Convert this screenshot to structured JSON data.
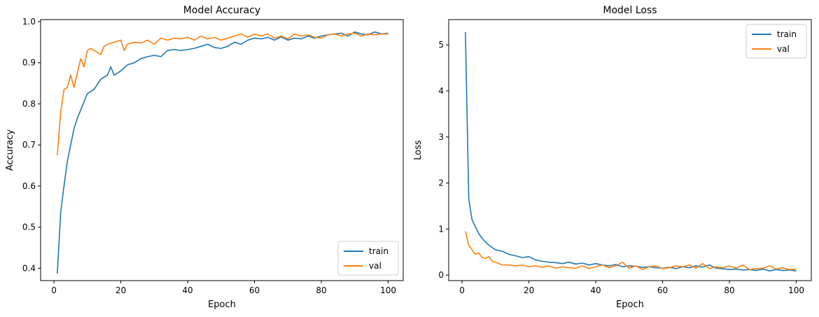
{
  "chart_data": [
    {
      "type": "line",
      "title": "Model Accuracy",
      "xlabel": "Epoch",
      "ylabel": "Accuracy",
      "xlim": [
        -4.0,
        104.5
      ],
      "ylim": [
        0.37,
        1.005
      ],
      "xticks": [
        0,
        20,
        40,
        60,
        80,
        100
      ],
      "yticks": [
        0.4,
        0.5,
        0.6,
        0.7,
        0.8,
        0.9,
        1.0
      ],
      "ytick_labels": [
        "0.4",
        "0.5",
        "0.6",
        "0.7",
        "0.8",
        "0.9",
        "1.0"
      ],
      "grid": false,
      "legend_position": "lower-right",
      "series": [
        {
          "name": "train",
          "color": "#1f77b4",
          "x": [
            1,
            2,
            3,
            4,
            5,
            6,
            7,
            8,
            9,
            10,
            12,
            14,
            16,
            17,
            18,
            20,
            22,
            24,
            26,
            28,
            30,
            32,
            34,
            36,
            38,
            40,
            42,
            44,
            46,
            48,
            50,
            52,
            54,
            56,
            58,
            60,
            62,
            64,
            66,
            68,
            70,
            72,
            74,
            76,
            78,
            80,
            82,
            84,
            86,
            88,
            90,
            92,
            94,
            96,
            98,
            100
          ],
          "y": [
            0.387,
            0.535,
            0.6,
            0.66,
            0.7,
            0.74,
            0.765,
            0.785,
            0.805,
            0.825,
            0.835,
            0.86,
            0.87,
            0.89,
            0.87,
            0.88,
            0.895,
            0.9,
            0.91,
            0.915,
            0.918,
            0.915,
            0.93,
            0.932,
            0.93,
            0.932,
            0.935,
            0.94,
            0.945,
            0.937,
            0.935,
            0.94,
            0.95,
            0.945,
            0.955,
            0.96,
            0.958,
            0.962,
            0.955,
            0.963,
            0.955,
            0.96,
            0.958,
            0.965,
            0.96,
            0.965,
            0.968,
            0.97,
            0.972,
            0.965,
            0.975,
            0.97,
            0.968,
            0.975,
            0.97,
            0.972
          ]
        },
        {
          "name": "val",
          "color": "#ff7f0e",
          "x": [
            1,
            2,
            3,
            4,
            5,
            6,
            7,
            8,
            9,
            10,
            11,
            12,
            14,
            15,
            16,
            18,
            20,
            21,
            22,
            24,
            26,
            28,
            30,
            32,
            34,
            36,
            38,
            40,
            42,
            44,
            46,
            48,
            50,
            52,
            54,
            56,
            58,
            60,
            62,
            64,
            66,
            68,
            70,
            72,
            74,
            76,
            78,
            80,
            82,
            84,
            86,
            88,
            90,
            92,
            94,
            96,
            98,
            100
          ],
          "y": [
            0.675,
            0.78,
            0.835,
            0.84,
            0.87,
            0.84,
            0.875,
            0.91,
            0.89,
            0.93,
            0.935,
            0.93,
            0.92,
            0.94,
            0.945,
            0.95,
            0.955,
            0.93,
            0.945,
            0.95,
            0.948,
            0.955,
            0.945,
            0.96,
            0.955,
            0.96,
            0.958,
            0.962,
            0.955,
            0.965,
            0.958,
            0.962,
            0.955,
            0.96,
            0.965,
            0.97,
            0.962,
            0.97,
            0.965,
            0.97,
            0.96,
            0.965,
            0.958,
            0.97,
            0.965,
            0.968,
            0.962,
            0.96,
            0.968,
            0.97,
            0.965,
            0.97,
            0.972,
            0.965,
            0.97,
            0.968,
            0.97,
            0.97
          ]
        }
      ]
    },
    {
      "type": "line",
      "title": "Model Loss",
      "xlabel": "Epoch",
      "ylabel": "Loss",
      "xlim": [
        -4.0,
        104.5
      ],
      "ylim": [
        -0.12,
        5.55
      ],
      "xticks": [
        0,
        20,
        40,
        60,
        80,
        100
      ],
      "yticks": [
        0,
        1,
        2,
        3,
        4,
        5
      ],
      "ytick_labels": [
        "0",
        "1",
        "2",
        "3",
        "4",
        "5"
      ],
      "grid": false,
      "legend_position": "upper-right",
      "series": [
        {
          "name": "train",
          "color": "#1f77b4",
          "x": [
            1,
            2,
            3,
            4,
            5,
            6,
            7,
            8,
            9,
            10,
            12,
            14,
            16,
            18,
            20,
            22,
            24,
            26,
            28,
            30,
            32,
            34,
            36,
            38,
            40,
            42,
            44,
            46,
            48,
            50,
            52,
            54,
            56,
            58,
            60,
            62,
            64,
            66,
            68,
            70,
            72,
            74,
            76,
            78,
            80,
            82,
            84,
            86,
            88,
            90,
            92,
            94,
            96,
            98,
            100
          ],
          "y": [
            5.28,
            1.65,
            1.2,
            1.05,
            0.9,
            0.8,
            0.72,
            0.65,
            0.6,
            0.55,
            0.52,
            0.45,
            0.42,
            0.38,
            0.4,
            0.33,
            0.3,
            0.28,
            0.27,
            0.25,
            0.28,
            0.24,
            0.26,
            0.22,
            0.25,
            0.22,
            0.2,
            0.23,
            0.18,
            0.2,
            0.19,
            0.17,
            0.18,
            0.16,
            0.15,
            0.17,
            0.14,
            0.18,
            0.16,
            0.2,
            0.17,
            0.22,
            0.15,
            0.14,
            0.12,
            0.13,
            0.11,
            0.12,
            0.1,
            0.13,
            0.09,
            0.12,
            0.1,
            0.11,
            0.09
          ]
        },
        {
          "name": "val",
          "color": "#ff7f0e",
          "x": [
            1,
            2,
            3,
            4,
            5,
            6,
            7,
            8,
            9,
            10,
            11,
            12,
            14,
            16,
            18,
            20,
            22,
            24,
            26,
            28,
            30,
            32,
            34,
            36,
            38,
            40,
            42,
            44,
            46,
            48,
            50,
            52,
            54,
            56,
            58,
            60,
            62,
            64,
            66,
            68,
            70,
            72,
            74,
            76,
            78,
            80,
            82,
            84,
            86,
            88,
            90,
            92,
            94,
            96,
            98,
            100
          ],
          "y": [
            0.95,
            0.65,
            0.55,
            0.45,
            0.48,
            0.38,
            0.36,
            0.4,
            0.3,
            0.28,
            0.25,
            0.22,
            0.22,
            0.2,
            0.22,
            0.18,
            0.2,
            0.17,
            0.2,
            0.15,
            0.18,
            0.16,
            0.15,
            0.2,
            0.14,
            0.18,
            0.22,
            0.16,
            0.2,
            0.28,
            0.15,
            0.2,
            0.12,
            0.18,
            0.2,
            0.14,
            0.16,
            0.2,
            0.18,
            0.22,
            0.15,
            0.25,
            0.14,
            0.18,
            0.16,
            0.2,
            0.15,
            0.22,
            0.12,
            0.14,
            0.15,
            0.2,
            0.13,
            0.16,
            0.12,
            0.13
          ]
        }
      ]
    }
  ]
}
